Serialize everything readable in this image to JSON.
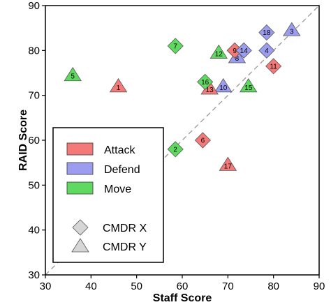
{
  "chart_data": {
    "type": "scatter",
    "xlabel": "Staff Score",
    "ylabel": "RAID Score",
    "xlim": [
      30,
      90
    ],
    "ylim": [
      30,
      90
    ],
    "xticks": [
      30,
      40,
      50,
      60,
      70,
      80,
      90
    ],
    "yticks": [
      30,
      40,
      50,
      60,
      70,
      80,
      90
    ],
    "reference_line": "y = x (dashed, gray)",
    "legend": {
      "placement": "bottom-left",
      "colors": [
        {
          "label": "Attack",
          "color": "#f47a7a"
        },
        {
          "label": "Defend",
          "color": "#9d9df0"
        },
        {
          "label": "Move",
          "color": "#5fd95f"
        }
      ],
      "shapes": [
        {
          "label": "CMDR X",
          "shape": "diamond"
        },
        {
          "label": "CMDR Y",
          "shape": "triangle"
        }
      ]
    },
    "points": [
      {
        "label": "1",
        "x": 46,
        "y": 72,
        "category": "Attack",
        "shape": "triangle"
      },
      {
        "label": "2",
        "x": 58.5,
        "y": 58,
        "category": "Move",
        "shape": "diamond"
      },
      {
        "label": "3",
        "x": 84,
        "y": 84.5,
        "category": "Defend",
        "shape": "triangle"
      },
      {
        "label": "4",
        "x": 78.5,
        "y": 80,
        "category": "Defend",
        "shape": "diamond"
      },
      {
        "label": "5",
        "x": 36,
        "y": 74.5,
        "category": "Move",
        "shape": "triangle"
      },
      {
        "label": "6",
        "x": 64.5,
        "y": 60,
        "category": "Attack",
        "shape": "diamond"
      },
      {
        "label": "7",
        "x": 58.5,
        "y": 81,
        "category": "Move",
        "shape": "diamond"
      },
      {
        "label": "8",
        "x": 72,
        "y": 78.5,
        "category": "Defend",
        "shape": "triangle"
      },
      {
        "label": "9",
        "x": 71.5,
        "y": 80,
        "category": "Attack",
        "shape": "diamond"
      },
      {
        "label": "10",
        "x": 69,
        "y": 72,
        "category": "Defend",
        "shape": "triangle"
      },
      {
        "label": "11",
        "x": 80,
        "y": 76.5,
        "category": "Attack",
        "shape": "diamond"
      },
      {
        "label": "12",
        "x": 68,
        "y": 79.5,
        "category": "Move",
        "shape": "triangle"
      },
      {
        "label": "13",
        "x": 66,
        "y": 71.5,
        "category": "Attack",
        "shape": "triangle"
      },
      {
        "label": "14",
        "x": 73.5,
        "y": 80,
        "category": "Defend",
        "shape": "diamond"
      },
      {
        "label": "15",
        "x": 74.5,
        "y": 72,
        "category": "Move",
        "shape": "triangle"
      },
      {
        "label": "16",
        "x": 65,
        "y": 73,
        "category": "Move",
        "shape": "diamond"
      },
      {
        "label": "17",
        "x": 70,
        "y": 54.5,
        "category": "Attack",
        "shape": "triangle"
      },
      {
        "label": "18",
        "x": 78.5,
        "y": 84,
        "category": "Defend",
        "shape": "diamond"
      }
    ]
  }
}
